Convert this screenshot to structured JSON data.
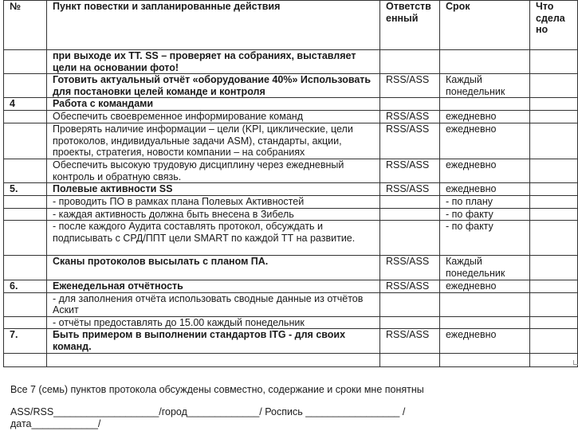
{
  "header": {
    "num": "№",
    "item": "Пункт повестки и запланированные действия",
    "resp": "Ответств енный",
    "due": "Срок",
    "done": "Что сдела но"
  },
  "rows": [
    {
      "num": "",
      "text": "при выходе их ТТ.  SS – проверяет на собраниях, выставляет цели на основании фото!",
      "bold": true,
      "resp": "",
      "due": "",
      "done": ""
    },
    {
      "num": "",
      "text": "Готовить актуальный отчёт «оборудование 40%» Использовать для постановки целей команде и контроля",
      "bold": true,
      "resp": "RSS/ASS",
      "due": "Каждый понедельник",
      "done": ""
    },
    {
      "num": "4",
      "text": "Работа с командами",
      "bold": true,
      "resp": "",
      "due": "",
      "done": ""
    },
    {
      "num": "",
      "text": "Обеспечить своевременное информирование команд",
      "bold": false,
      "resp": "RSS/ASS",
      "due": "ежедневно",
      "done": ""
    },
    {
      "num": "",
      "text": "Проверять наличие информации – цели (KPI, циклические, цели протоколов, индивидуальные задачи ASM),  стандарты, акции, проекты, стратегия, новости компании – на собраниях",
      "bold": false,
      "resp": "RSS/ASS",
      "due": "ежедневно",
      "done": ""
    },
    {
      "num": "",
      "text": "Обеспечить высокую трудовую дисциплину через ежедневный контроль и обратную связь.",
      "bold": false,
      "resp": "RSS/ASS",
      "due": "ежедневно",
      "done": ""
    },
    {
      "num": "5.",
      "text": "Полевые активности  SS",
      "bold": true,
      "resp": "RSS/ASS",
      "due": "ежедневно",
      "done": ""
    },
    {
      "num": "",
      "text": "- проводить ПО в рамках плана Полевых Активностей",
      "bold": false,
      "resp": "",
      "due": "- по плану",
      "done": ""
    },
    {
      "num": "",
      "text": "- каждая активность должна быть внесена в Зибель",
      "bold": false,
      "resp": "",
      "due": "- по факту",
      "done": ""
    },
    {
      "num": "",
      "text": "- после каждого Аудита составлять протокол, обсуждать и подписывать с СРД/ППТ цели SMART по каждой ТТ на развитие.",
      "bold": false,
      "resp": "",
      "due": "- по факту",
      "done": ""
    },
    {
      "num": "",
      "text": "Сканы протоколов высылать с планом ПА.",
      "bold": true,
      "resp": "RSS/ASS",
      "due": "Каждый понедельник",
      "done": ""
    },
    {
      "num": "6.",
      "text": "Еженедельная отчётность",
      "bold": true,
      "resp": "RSS/ASS",
      "due": "ежедневно",
      "done": ""
    },
    {
      "num": "",
      "text": "- для заполнения отчёта использовать сводные данные из отчётов Аскит",
      "bold": false,
      "resp": "",
      "due": "",
      "done": ""
    },
    {
      "num": "",
      "text": "- отчёты предоставлять до 15.00 каждый понедельник",
      "bold": false,
      "resp": "",
      "due": "",
      "done": ""
    },
    {
      "num": "7.",
      "text": "Быть примером в выполнении стандартов ITG - для своих команд.",
      "bold": true,
      "resp": "RSS/ASS",
      "due": "ежедневно",
      "done": ""
    },
    {
      "num": "",
      "text": "",
      "bold": false,
      "resp": "",
      "due": "",
      "done": ""
    }
  ],
  "footer": {
    "statement": "Все 7 (семь) пунктов  протокола обсуждены совместно, содержание и сроки мне понятны",
    "signature_line": "ASS/RSS___________________/город_____________/  Роспись _________________ /",
    "date_line": "дата____________/"
  }
}
